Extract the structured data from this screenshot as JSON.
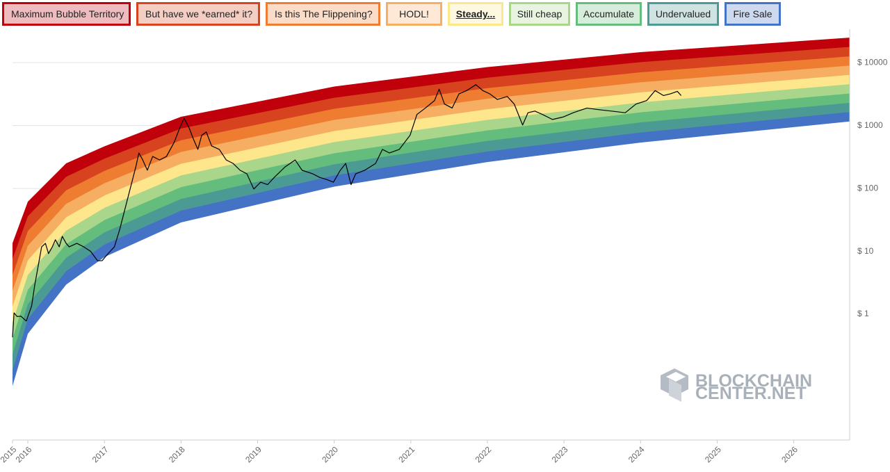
{
  "chart_data": {
    "type": "line",
    "ylog": true,
    "grid": true,
    "xlim": [
      2015.8,
      2026.73
    ],
    "xticks": [
      {
        "value": 2015.8,
        "label": "2015"
      },
      2016,
      2017,
      2018,
      2019,
      2020,
      2021,
      2022,
      2023,
      2024,
      2025,
      2026
    ],
    "ylim": [
      0.01,
      30000
    ],
    "yticks": [
      {
        "value": 1,
        "label": "$ 1"
      },
      {
        "value": 10,
        "label": "$ 10"
      },
      {
        "value": 100,
        "label": "$ 100"
      },
      {
        "value": 1000,
        "label": "$ 1000"
      },
      {
        "value": 10000,
        "label": "$ 10000"
      }
    ],
    "bands": {
      "x": [
        2015.8,
        2016,
        2016.5,
        2017,
        2018,
        2020,
        2022,
        2024,
        2026.73
      ],
      "series": [
        {
          "name": "Maximum Bubble Territory",
          "color": "#c0000b",
          "values": [
            13.5,
            61.7,
            251,
            468,
            1380,
            4170,
            8510,
            14700,
            25000
          ]
        },
        {
          "name": "But have we *earned* it?",
          "color": "#d7421f",
          "values": [
            7.55,
            36.1,
            153,
            298,
            898,
            2770,
            5780,
            10200,
            17800
          ]
        },
        {
          "name": "Is this The Flippening?",
          "color": "#ee7d32",
          "values": [
            4.22,
            21.0,
            93.5,
            190,
            585,
            1850,
            3940,
            7030,
            12600
          ]
        },
        {
          "name": "HODL!",
          "color": "#f6ae62",
          "values": [
            2.36,
            12.3,
            57.0,
            121,
            380,
            1230,
            2670,
            4880,
            8990
          ]
        },
        {
          "name": "Steady...",
          "color": "#fde68c",
          "values": [
            1.32,
            7.19,
            34.8,
            77.3,
            247,
            818,
            1820,
            3370,
            6400
          ]
        },
        {
          "name": "Still cheap",
          "color": "#a9d68a",
          "values": [
            0.74,
            4.2,
            21.3,
            49.2,
            161,
            546,
            1230,
            2330,
            4550
          ]
        },
        {
          "name": "Accumulate",
          "color": "#64bd7c",
          "values": [
            0.414,
            2.45,
            13.0,
            31.4,
            105,
            363,
            838,
            1620,
            3240
          ]
        },
        {
          "name": "Undervalued",
          "color": "#4c9a94",
          "values": [
            0.231,
            1.44,
            7.93,
            20.0,
            68.1,
            242,
            570,
            1120,
            2300
          ]
        },
        {
          "name": "Fire Sale",
          "color": "#4472c4",
          "values": [
            0.129,
            0.838,
            4.83,
            12.8,
            44.4,
            161,
            387,
            776,
            1640
          ]
        }
      ],
      "floor": [
        0.0724,
        0.49,
        2.95,
        8.13,
        28.8,
        107,
        263,
        537,
        1160
      ]
    },
    "color": "#000000",
    "x": [
      2015.8,
      2015.82,
      2015.86,
      2015.91,
      2015.98,
      2016.05,
      2016.09,
      2016.14,
      2016.18,
      2016.23,
      2016.27,
      2016.32,
      2016.36,
      2016.41,
      2016.45,
      2016.5,
      2016.54,
      2016.64,
      2016.73,
      2016.82,
      2016.91,
      2016.97,
      2017.04,
      2017.13,
      2017.2,
      2017.27,
      2017.34,
      2017.41,
      2017.45,
      2017.5,
      2017.56,
      2017.63,
      2017.72,
      2017.81,
      2017.91,
      2017.98,
      2018.04,
      2018.11,
      2018.16,
      2018.22,
      2018.27,
      2018.33,
      2018.4,
      2018.5,
      2018.59,
      2018.68,
      2018.77,
      2018.86,
      2018.95,
      2019.04,
      2019.13,
      2019.22,
      2019.36,
      2019.49,
      2019.58,
      2019.72,
      2019.81,
      2019.9,
      2019.99,
      2020.08,
      2020.15,
      2020.22,
      2020.28,
      2020.4,
      2020.54,
      2020.63,
      2020.72,
      2020.85,
      2020.99,
      2021.08,
      2021.19,
      2021.31,
      2021.37,
      2021.44,
      2021.54,
      2021.63,
      2021.73,
      2021.85,
      2021.94,
      2022.03,
      2022.13,
      2022.26,
      2022.35,
      2022.46,
      2022.53,
      2022.62,
      2022.72,
      2022.85,
      2022.99,
      2023.12,
      2023.3,
      2023.44,
      2023.62,
      2023.8,
      2023.94,
      2024.08,
      2024.19,
      2024.3,
      2024.39,
      2024.48,
      2024.53
    ],
    "values": [
      0.43,
      1.05,
      0.92,
      0.93,
      0.78,
      1.36,
      2.9,
      6.3,
      11.8,
      13.4,
      9.2,
      11.8,
      15.3,
      11.8,
      17.3,
      13.4,
      11.8,
      13.4,
      11.8,
      10,
      7.1,
      7.1,
      9,
      11.8,
      22.4,
      48,
      103,
      221,
      367,
      284,
      195,
      323,
      284,
      323,
      540,
      895,
      1320,
      895,
      616,
      418,
      700,
      790,
      474,
      418,
      284,
      250,
      195,
      171,
      98,
      126,
      115,
      151,
      221,
      284,
      195,
      171,
      150,
      139,
      126,
      195,
      250,
      115,
      171,
      195,
      250,
      418,
      367,
      418,
      700,
      1500,
      1900,
      2500,
      3800,
      2200,
      1900,
      3200,
      3600,
      4470,
      3600,
      3200,
      2600,
      2900,
      2200,
      1020,
      1600,
      1700,
      1500,
      1250,
      1370,
      1600,
      1900,
      1800,
      1700,
      1600,
      2200,
      2500,
      3600,
      3000,
      3200,
      3500,
      3000
    ],
    "watermark": [
      "BLOCKCHAIN",
      "CENTER.NET"
    ]
  }
}
